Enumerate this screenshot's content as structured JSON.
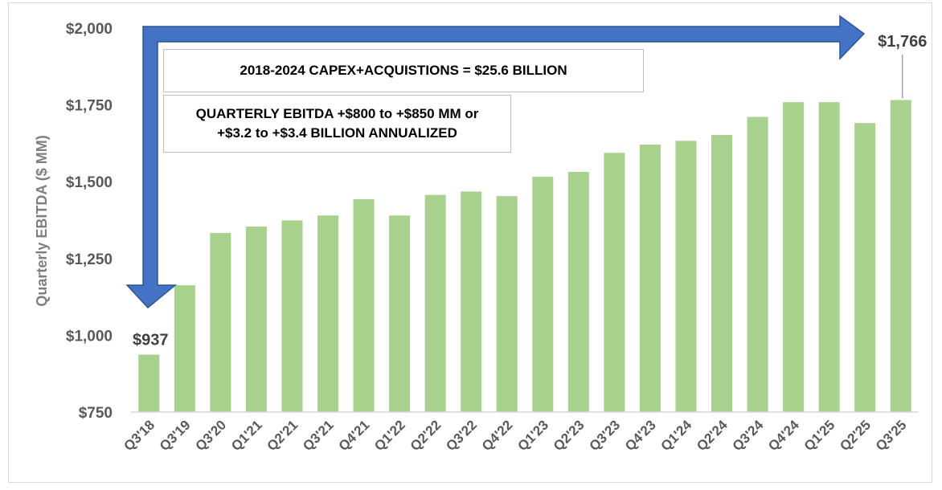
{
  "chart_data": {
    "type": "bar",
    "title": "",
    "xlabel": "",
    "ylabel": "Quarterly  EBITDA ($ MM)",
    "ylim": [
      750,
      2000
    ],
    "yticks": [
      "$750",
      "$1,000",
      "$1,250",
      "$1,500",
      "$1,750",
      "$2,000"
    ],
    "ytick_values": [
      750,
      1000,
      1250,
      1500,
      1750,
      2000
    ],
    "categories": [
      "Q3'18",
      "Q3'19",
      "Q3'20",
      "Q1'21",
      "Q2'21",
      "Q3'21",
      "Q4'21",
      "Q1'22",
      "Q2'22",
      "Q3'22",
      "Q4'22",
      "Q1'23",
      "Q2'23",
      "Q3'23",
      "Q4'23",
      "Q1'24",
      "Q2'24",
      "Q3'24",
      "Q4'24",
      "Q1'25",
      "Q2'25",
      "Q3'25"
    ],
    "values": [
      937,
      1163,
      1333,
      1354,
      1374,
      1390,
      1443,
      1390,
      1457,
      1468,
      1453,
      1516,
      1532,
      1594,
      1621,
      1633,
      1652,
      1711,
      1759,
      1759,
      1691,
      1766
    ],
    "bar_color": "#a9d18e",
    "data_labels": [
      {
        "index": 0,
        "text": "$937"
      },
      {
        "index": 21,
        "text": "$1,766"
      }
    ],
    "annotations": {
      "capex": "2018-2024 CAPEX+ACQUISTIONS = $25.6 BILLION",
      "ebitda_line1": "QUARTERLY EBITDA +$800 to +$850 MM or",
      "ebitda_line2": "+$3.2 to +$3.4 BILLION ANNUALIZED"
    },
    "arrow_color": "#4472c4",
    "arrow_outline": "#2f5597"
  }
}
